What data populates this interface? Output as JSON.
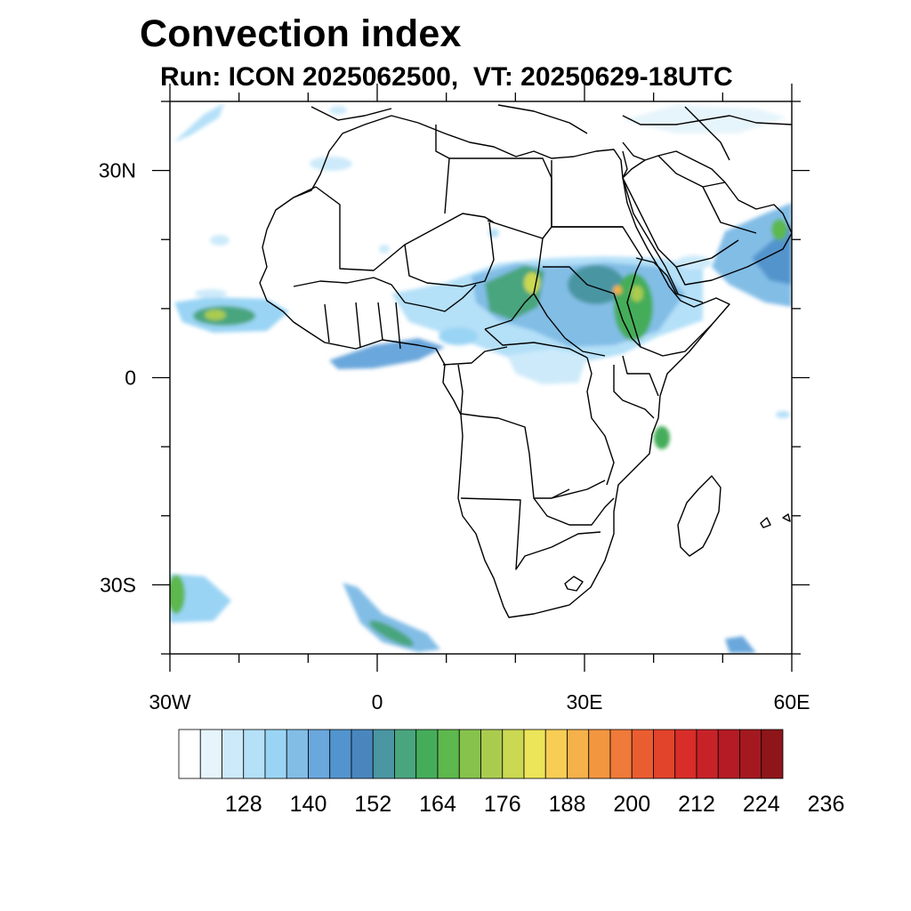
{
  "title": "Convection index",
  "subtitle": "Run: ICON 2025062500,  VT: 20250629-18UTC",
  "map": {
    "lon_range": [
      -30,
      60
    ],
    "lat_range": [
      -40,
      40
    ],
    "x_ticks": [
      {
        "value": -30,
        "label": "30W"
      },
      {
        "value": 0,
        "label": "0"
      },
      {
        "value": 30,
        "label": "30E"
      },
      {
        "value": 60,
        "label": "60E"
      }
    ],
    "y_ticks": [
      {
        "value": 30,
        "label": "30N"
      },
      {
        "value": 0,
        "label": "0"
      },
      {
        "value": -30,
        "label": "30S"
      }
    ],
    "minor_lon_step": 10,
    "minor_lat_step": 10,
    "border_color": "#000000"
  },
  "colorbar": {
    "colors": [
      "#ffffff",
      "#e6f4fb",
      "#cdeafa",
      "#b4e0f8",
      "#9ad4f4",
      "#82bde6",
      "#6aa7dc",
      "#5294cd",
      "#4a86be",
      "#4a96a2",
      "#48a57e",
      "#45ad5a",
      "#5db84d",
      "#86c24c",
      "#a9cc4f",
      "#cbd851",
      "#ece55a",
      "#f7cd54",
      "#f5b14a",
      "#f39640",
      "#ef7a39",
      "#ea5d31",
      "#e2432b",
      "#d82d29",
      "#c72228",
      "#b51b24",
      "#a41920",
      "#8e161a"
    ],
    "tick_labels": [
      "128",
      "140",
      "152",
      "164",
      "176",
      "188",
      "200",
      "212",
      "224",
      "236"
    ],
    "label_every_n_boundaries": 3,
    "first_label_boundary": 3
  }
}
